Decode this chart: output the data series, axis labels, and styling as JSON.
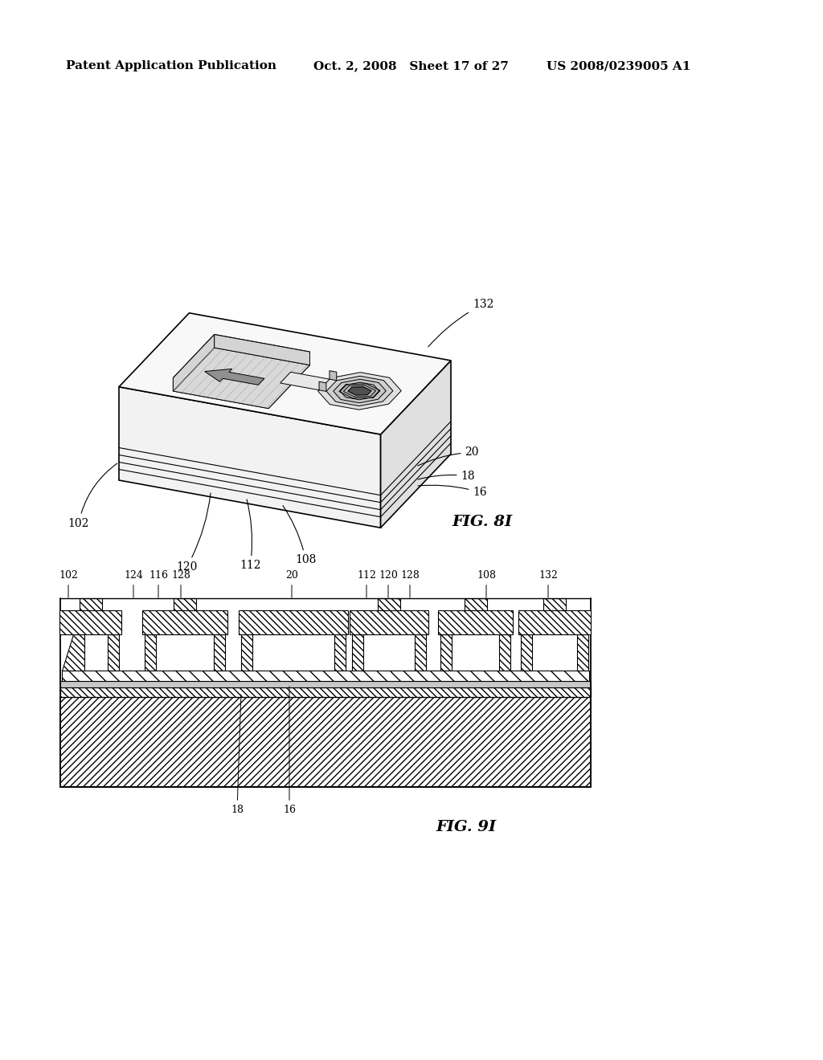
{
  "background_color": "#ffffff",
  "header_left": "Patent Application Publication",
  "header_center": "Oct. 2, 2008   Sheet 17 of 27",
  "header_right": "US 2008/0239005 A1",
  "fig_label_8i": "FIG. 8I",
  "fig_label_9i": "FIG. 9I",
  "header_fontsize": 11,
  "fig_label_fontsize": 14,
  "label_fontsize": 10
}
